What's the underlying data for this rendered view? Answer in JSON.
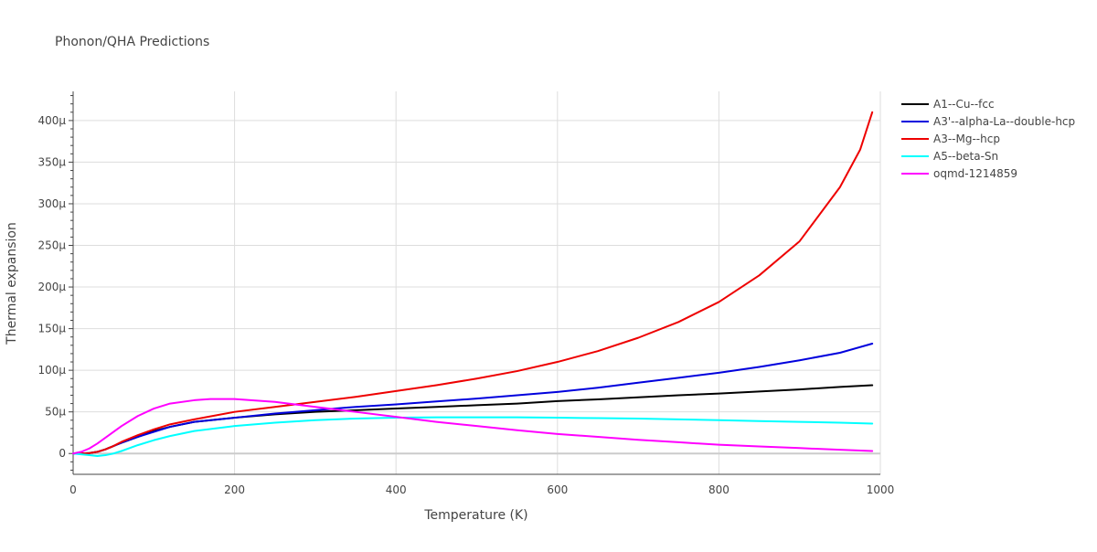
{
  "chart_data": {
    "type": "line",
    "title": "Phonon/QHA Predictions",
    "xlabel": "Temperature (K)",
    "ylabel": "Thermal expansion",
    "xlim": [
      0,
      1000
    ],
    "ylim": [
      -25,
      435
    ],
    "x_ticks": [
      0,
      200,
      400,
      600,
      800,
      1000
    ],
    "x_tick_labels": [
      "0",
      "200",
      "400",
      "600",
      "800",
      "1000"
    ],
    "y_ticks": [
      0,
      50,
      100,
      150,
      200,
      250,
      300,
      350,
      400
    ],
    "y_tick_labels": [
      "0",
      "50μ",
      "100μ",
      "150μ",
      "200μ",
      "250μ",
      "300μ",
      "350μ",
      "400μ"
    ],
    "y_unit_note": "values in units of 1e-6 (μ)",
    "grid": true,
    "legend_position": "top-right, outside plot",
    "series": [
      {
        "name": "A1--Cu--fcc",
        "color": "#000000",
        "points": [
          [
            0,
            0
          ],
          [
            10,
            0
          ],
          [
            20,
            0.5
          ],
          [
            30,
            2
          ],
          [
            40,
            5
          ],
          [
            50,
            9
          ],
          [
            60,
            13
          ],
          [
            80,
            20
          ],
          [
            100,
            27
          ],
          [
            120,
            32
          ],
          [
            150,
            38
          ],
          [
            200,
            43
          ],
          [
            250,
            47
          ],
          [
            300,
            50
          ],
          [
            350,
            52
          ],
          [
            400,
            54
          ],
          [
            450,
            56
          ],
          [
            500,
            58
          ],
          [
            550,
            60
          ],
          [
            600,
            63
          ],
          [
            650,
            65
          ],
          [
            700,
            67.5
          ],
          [
            750,
            70
          ],
          [
            800,
            72
          ],
          [
            850,
            74.5
          ],
          [
            900,
            77
          ],
          [
            950,
            80
          ],
          [
            990,
            82
          ]
        ]
      },
      {
        "name": "A3'--alpha-La--double-hcp",
        "color": "#0000dd",
        "points": [
          [
            0,
            0
          ],
          [
            10,
            0
          ],
          [
            20,
            0.5
          ],
          [
            30,
            2
          ],
          [
            40,
            5
          ],
          [
            50,
            9
          ],
          [
            60,
            13
          ],
          [
            80,
            20
          ],
          [
            100,
            26
          ],
          [
            120,
            32
          ],
          [
            150,
            38
          ],
          [
            200,
            43
          ],
          [
            250,
            48
          ],
          [
            300,
            52
          ],
          [
            350,
            56
          ],
          [
            400,
            59
          ],
          [
            450,
            62.5
          ],
          [
            500,
            66
          ],
          [
            550,
            70
          ],
          [
            600,
            74
          ],
          [
            650,
            79
          ],
          [
            700,
            85
          ],
          [
            750,
            91
          ],
          [
            800,
            97
          ],
          [
            850,
            104
          ],
          [
            900,
            112
          ],
          [
            950,
            121
          ],
          [
            990,
            132
          ]
        ]
      },
      {
        "name": "A3--Mg--hcp",
        "color": "#ee0000",
        "points": [
          [
            0,
            0
          ],
          [
            10,
            0
          ],
          [
            20,
            0.5
          ],
          [
            30,
            2
          ],
          [
            40,
            5
          ],
          [
            50,
            9
          ],
          [
            60,
            14
          ],
          [
            80,
            22
          ],
          [
            100,
            29
          ],
          [
            120,
            35
          ],
          [
            150,
            41
          ],
          [
            200,
            50
          ],
          [
            250,
            56
          ],
          [
            300,
            62
          ],
          [
            350,
            68
          ],
          [
            400,
            75
          ],
          [
            450,
            82
          ],
          [
            500,
            90
          ],
          [
            550,
            99
          ],
          [
            600,
            110
          ],
          [
            650,
            123
          ],
          [
            700,
            139
          ],
          [
            750,
            158
          ],
          [
            800,
            182
          ],
          [
            850,
            214
          ],
          [
            900,
            255
          ],
          [
            950,
            320
          ],
          [
            975,
            365
          ],
          [
            990,
            410
          ]
        ]
      },
      {
        "name": "A5--beta-Sn",
        "color": "#00ffff",
        "points": [
          [
            0,
            0
          ],
          [
            10,
            -1
          ],
          [
            20,
            -2
          ],
          [
            30,
            -3
          ],
          [
            40,
            -2
          ],
          [
            50,
            0
          ],
          [
            60,
            3
          ],
          [
            80,
            10
          ],
          [
            100,
            16
          ],
          [
            120,
            21
          ],
          [
            150,
            27
          ],
          [
            200,
            33
          ],
          [
            250,
            37
          ],
          [
            300,
            40
          ],
          [
            350,
            42
          ],
          [
            400,
            43
          ],
          [
            450,
            43.5
          ],
          [
            500,
            43.5
          ],
          [
            550,
            43.5
          ],
          [
            600,
            43
          ],
          [
            650,
            42.5
          ],
          [
            700,
            42
          ],
          [
            750,
            41
          ],
          [
            800,
            40
          ],
          [
            850,
            39
          ],
          [
            900,
            38
          ],
          [
            950,
            37
          ],
          [
            990,
            36
          ]
        ]
      },
      {
        "name": "oqmd-1214859",
        "color": "#ff00ff",
        "points": [
          [
            0,
            0
          ],
          [
            10,
            2
          ],
          [
            20,
            6
          ],
          [
            30,
            12
          ],
          [
            40,
            19
          ],
          [
            50,
            26
          ],
          [
            60,
            33
          ],
          [
            80,
            45
          ],
          [
            100,
            54
          ],
          [
            120,
            60
          ],
          [
            150,
            64
          ],
          [
            170,
            65.5
          ],
          [
            200,
            65.5
          ],
          [
            250,
            62
          ],
          [
            300,
            56
          ],
          [
            350,
            50
          ],
          [
            400,
            44
          ],
          [
            450,
            38
          ],
          [
            500,
            33
          ],
          [
            550,
            28
          ],
          [
            600,
            23.5
          ],
          [
            650,
            20
          ],
          [
            700,
            16.5
          ],
          [
            750,
            13.5
          ],
          [
            800,
            10.5
          ],
          [
            850,
            8.5
          ],
          [
            900,
            6.5
          ],
          [
            950,
            4.5
          ],
          [
            990,
            3
          ]
        ]
      }
    ]
  }
}
